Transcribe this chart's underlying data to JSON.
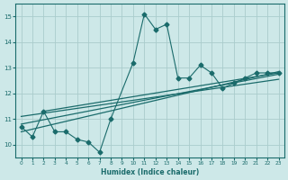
{
  "xlabel": "Humidex (Indice chaleur)",
  "xlim": [
    -0.5,
    23.5
  ],
  "ylim": [
    9.5,
    15.5
  ],
  "yticks": [
    10,
    11,
    12,
    13,
    14,
    15
  ],
  "xticks": [
    0,
    1,
    2,
    3,
    4,
    5,
    6,
    7,
    8,
    9,
    10,
    11,
    12,
    13,
    14,
    15,
    16,
    17,
    18,
    19,
    20,
    21,
    22,
    23
  ],
  "bg_color": "#cde8e8",
  "grid_color": "#aacccc",
  "line_color": "#1a6b6b",
  "main_series": {
    "x": [
      0,
      1,
      2,
      3,
      4,
      5,
      6,
      7,
      8,
      10,
      11,
      12,
      13,
      14,
      15,
      16,
      17,
      18,
      19,
      20,
      21,
      22,
      23
    ],
    "y": [
      10.7,
      10.3,
      11.3,
      10.5,
      10.5,
      10.2,
      10.1,
      9.7,
      11.0,
      13.2,
      15.1,
      14.5,
      14.7,
      12.6,
      12.6,
      13.1,
      12.8,
      12.2,
      12.4,
      12.6,
      12.8,
      12.8,
      12.8
    ]
  },
  "straight_lines": [
    {
      "x": [
        0,
        23
      ],
      "y": [
        10.8,
        12.75
      ]
    },
    {
      "x": [
        0,
        23
      ],
      "y": [
        11.1,
        12.55
      ]
    },
    {
      "x": [
        0,
        23
      ],
      "y": [
        10.5,
        12.85
      ]
    },
    {
      "x": [
        2,
        23
      ],
      "y": [
        11.3,
        12.8
      ]
    }
  ]
}
